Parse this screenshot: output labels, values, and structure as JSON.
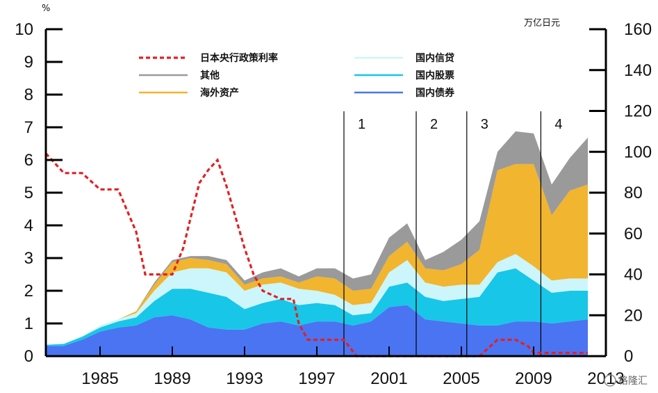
{
  "chart_data": {
    "type": "area",
    "left_axis": {
      "unit": "%",
      "ylim": [
        0,
        10
      ],
      "ticks": [
        "0",
        "1",
        "2",
        "3",
        "4",
        "5",
        "6",
        "7",
        "8",
        "9",
        "10"
      ]
    },
    "right_axis": {
      "unit": "万亿日元",
      "ylim": [
        0,
        160
      ],
      "ticks": [
        "0",
        "20",
        "40",
        "60",
        "80",
        "100",
        "120",
        "140",
        "160"
      ]
    },
    "x_ticks": [
      "1985",
      "1989",
      "1993",
      "1997",
      "2001",
      "2005",
      "2009",
      "2013"
    ],
    "x_range": [
      1982,
      2013
    ],
    "years": [
      1982,
      1983,
      1984,
      1985,
      1986,
      1987,
      1988,
      1989,
      1990,
      1991,
      1992,
      1993,
      1994,
      1995,
      1996,
      1997,
      1998,
      1999,
      2000,
      2001,
      2002,
      2003,
      2004,
      2005,
      2006,
      2007,
      2008,
      2009,
      2010,
      2011,
      2012
    ],
    "series": [
      {
        "name": "国内债券",
        "color": "#4a74f2",
        "values": [
          5,
          5,
          8,
          12,
          14,
          15,
          19,
          20,
          18,
          14,
          13,
          13,
          16,
          17,
          15,
          17,
          17,
          15,
          17,
          24,
          25,
          18,
          17,
          16,
          15,
          15,
          17,
          17,
          16,
          17,
          18
        ]
      },
      {
        "name": "国内股票",
        "color": "#18c6e8",
        "values": [
          0.5,
          1,
          1.5,
          2,
          3,
          4,
          8,
          13,
          15,
          17,
          16,
          10,
          10,
          11,
          10,
          9,
          8,
          5,
          4,
          10,
          11,
          11,
          10,
          12,
          14,
          26,
          26,
          20,
          15,
          15,
          14
        ]
      },
      {
        "name": "国内信贷",
        "color": "#ccf6fb",
        "values": [
          0,
          0,
          0,
          1,
          1,
          2,
          5,
          8,
          10,
          12,
          12,
          9,
          9,
          8,
          8,
          6,
          5,
          5,
          5,
          7,
          11,
          7,
          7,
          7,
          6,
          5,
          7,
          7,
          6,
          6,
          6
        ]
      },
      {
        "name": "海外资产",
        "color": "#f1b52f",
        "values": [
          0,
          0,
          0,
          0,
          0,
          1,
          3,
          5,
          5,
          4,
          4,
          3,
          3,
          3,
          3,
          7,
          8,
          7,
          7,
          8,
          9,
          7,
          8,
          10,
          17,
          45,
          44,
          50,
          32,
          43,
          46
        ]
      },
      {
        "name": "其他",
        "color": "#9a9a9a",
        "values": [
          0,
          0,
          0,
          0,
          0,
          0,
          1,
          1,
          1,
          2,
          2,
          2,
          3,
          4,
          3,
          4,
          5,
          6,
          7,
          9,
          9,
          4,
          9,
          12,
          14,
          9,
          16,
          15,
          15,
          16,
          23
        ]
      }
    ],
    "policy_rate": {
      "name": "日本央行政策利率",
      "color": "#e41f22",
      "points": [
        [
          1982,
          6.2
        ],
        [
          1983,
          5.6
        ],
        [
          1984,
          5.6
        ],
        [
          1985,
          5.1
        ],
        [
          1986,
          5.1
        ],
        [
          1987,
          3.8
        ],
        [
          1987.5,
          2.5
        ],
        [
          1988,
          2.5
        ],
        [
          1989,
          2.5
        ],
        [
          1989.6,
          3.3
        ],
        [
          1990,
          4.2
        ],
        [
          1990.5,
          5.3
        ],
        [
          1991,
          5.7
        ],
        [
          1991.5,
          6.0
        ],
        [
          1992,
          5.2
        ],
        [
          1993,
          3.3
        ],
        [
          1993.5,
          2.5
        ],
        [
          1994,
          2.0
        ],
        [
          1995,
          1.75
        ],
        [
          1995.7,
          1.75
        ],
        [
          1996,
          1.0
        ],
        [
          1996.5,
          0.5
        ],
        [
          1997,
          0.5
        ],
        [
          1998,
          0.5
        ],
        [
          1998.5,
          0.5
        ],
        [
          1999.2,
          0.0
        ],
        [
          2000,
          0.0
        ],
        [
          2005,
          0.0
        ],
        [
          2006,
          0.0
        ],
        [
          2006.5,
          0.25
        ],
        [
          2007,
          0.5
        ],
        [
          2008,
          0.5
        ],
        [
          2008.7,
          0.3
        ],
        [
          2009,
          0.1
        ],
        [
          2010,
          0.1
        ],
        [
          2011,
          0.1
        ],
        [
          2012,
          0.1
        ]
      ]
    },
    "period_markers": [
      {
        "label": "1",
        "x": 1998.5
      },
      {
        "label": "2",
        "x": 2002.5
      },
      {
        "label": "3",
        "x": 2005.3
      },
      {
        "label": "4",
        "x": 2009.4
      }
    ],
    "legend": [
      {
        "label": "日本央行政策利率",
        "style": "dashed",
        "color": "#e41f22"
      },
      {
        "label": "其他",
        "style": "solid",
        "color": "#9a9a9a"
      },
      {
        "label": "海外资产",
        "style": "solid",
        "color": "#f1b52f"
      },
      {
        "label": "国内信贷",
        "style": "solid",
        "color": "#ccf6fb"
      },
      {
        "label": "国内股票",
        "style": "solid",
        "color": "#18c6e8"
      },
      {
        "label": "国内债券",
        "style": "solid",
        "color": "#4a74f2"
      }
    ],
    "grid": false,
    "legend_placement": "top-left"
  },
  "watermark": "格隆汇"
}
